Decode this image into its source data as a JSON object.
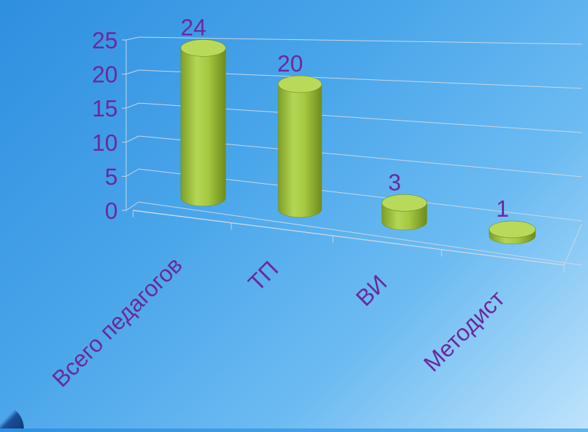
{
  "chart_data": {
    "type": "bar",
    "style": "3d-cylinder",
    "categories": [
      "Всего педагогов",
      "ТП",
      "ВИ",
      "Методист"
    ],
    "values": [
      24,
      20,
      3,
      1
    ],
    "data_labels": [
      "24",
      "20",
      "3",
      "1"
    ],
    "ylim": [
      0,
      25
    ],
    "ytick_labels": [
      "0",
      "5",
      "10",
      "15",
      "20",
      "25"
    ],
    "grid": true,
    "legend": "none"
  },
  "colors": {
    "bar_fill": "#9cc23a",
    "bar_top": "#b8d95a",
    "bar_edge": "#6f8f1f",
    "text": "#6a2a9c",
    "grid": "#c8d8e8"
  }
}
